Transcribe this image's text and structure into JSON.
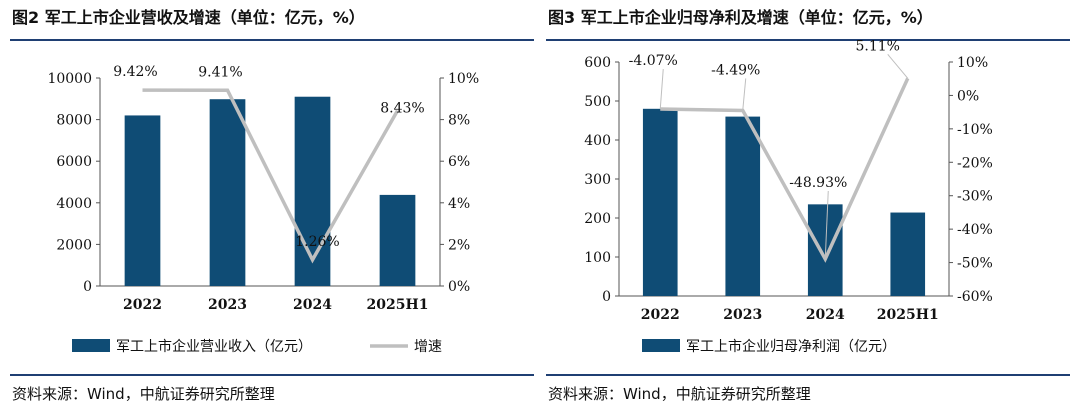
{
  "colors": {
    "bar": "#0f4c75",
    "line": "#bfbfbf",
    "rule": "#1f3f73",
    "axis": "#555555"
  },
  "charts": [
    {
      "title": "图2  军工上市企业营收及增速（单位：亿元，%）",
      "source": "资料来源：Wind，中航证券研究所整理"
    },
    {
      "title": "图3  军工上市企业归母净利及增速（单位：亿元，%）",
      "source": "资料来源：Wind，中航证券研究所整理"
    }
  ],
  "chart_data": [
    {
      "type": "bar",
      "title": "图2  军工上市企业营收及增速（单位：亿元，%）",
      "categories": [
        "2022",
        "2023",
        "2024",
        "2025H1"
      ],
      "series": [
        {
          "name": "军工上市企业营业收入（亿元）",
          "type": "bar",
          "axis": "left",
          "values": [
            8200,
            8980,
            9100,
            4380
          ]
        },
        {
          "name": "增速",
          "type": "line",
          "axis": "right",
          "values": [
            9.42,
            9.41,
            1.26,
            8.43
          ]
        }
      ],
      "data_labels": [
        "9.42%",
        "9.41%",
        "1.26%",
        "8.43%"
      ],
      "y_left": {
        "min": 0,
        "max": 10000,
        "ticks": [
          "0",
          "2000",
          "4000",
          "6000",
          "8000",
          "10000"
        ]
      },
      "y_right": {
        "min": 0,
        "max": 10,
        "ticks": [
          "0%",
          "2%",
          "4%",
          "6%",
          "8%",
          "10%"
        ]
      },
      "legend": [
        "军工上市企业营业收入（亿元）",
        "增速"
      ]
    },
    {
      "type": "bar",
      "title": "图3  军工上市企业归母净利及增速（单位：亿元，%）",
      "categories": [
        "2022",
        "2023",
        "2024",
        "2025H1"
      ],
      "series": [
        {
          "name": "军工上市企业归母净利润（亿元）",
          "type": "bar",
          "axis": "left",
          "values": [
            480,
            460,
            235,
            214
          ]
        },
        {
          "name": "增速",
          "type": "line",
          "axis": "right",
          "values": [
            -4.07,
            -4.49,
            -48.93,
            5.11
          ]
        }
      ],
      "data_labels": [
        "-4.07%",
        "-4.49%",
        "-48.93%",
        "5.11%"
      ],
      "y_left": {
        "min": 0,
        "max": 600,
        "ticks": [
          "0",
          "100",
          "200",
          "300",
          "400",
          "500",
          "600"
        ]
      },
      "y_right": {
        "min": -60,
        "max": 10,
        "ticks": [
          "-60%",
          "-50%",
          "-40%",
          "-30%",
          "-20%",
          "-10%",
          "0%",
          "10%"
        ]
      },
      "legend": [
        "军工上市企业归母净利润（亿元）"
      ]
    }
  ]
}
